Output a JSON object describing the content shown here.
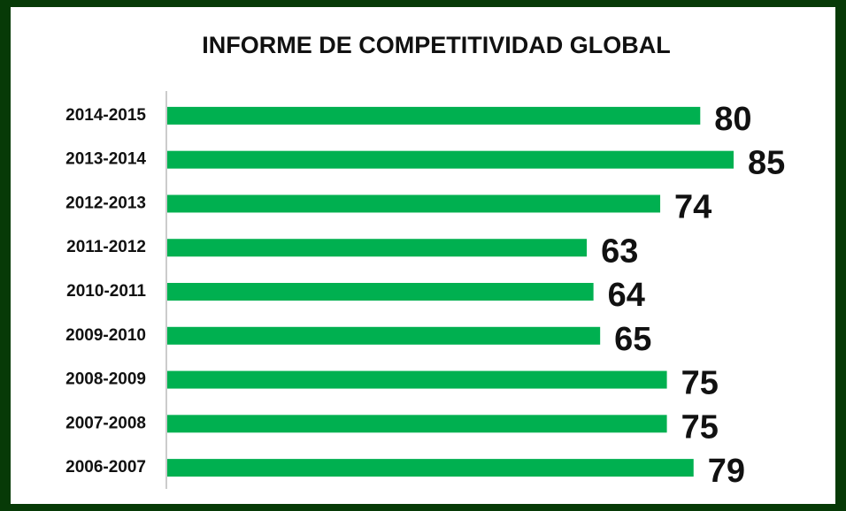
{
  "chart_data": {
    "type": "barh",
    "title": "INFORME DE COMPETITIVIDAD  GLOBAL",
    "categories": [
      "2014-2015",
      "2013-2014",
      "2012-2013",
      "2011-2012",
      "2010-2011",
      "2009-2010",
      "2008-2009",
      "2007-2008",
      "2006-2007"
    ],
    "values": [
      80,
      85,
      74,
      63,
      64,
      65,
      75,
      75,
      79
    ],
    "color": "#00b050"
  }
}
